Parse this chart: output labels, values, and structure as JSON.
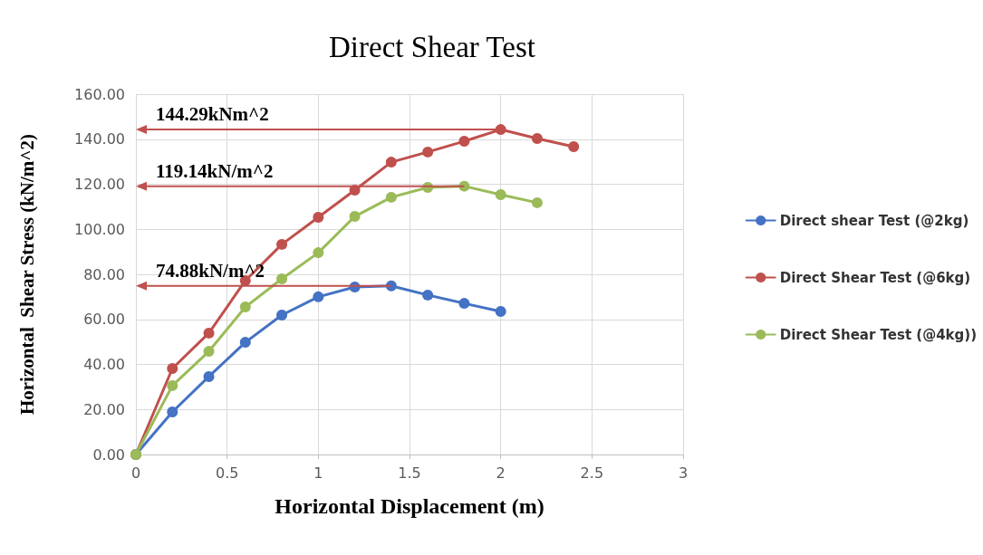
{
  "chart_data": {
    "type": "line",
    "title": "Direct Shear Test",
    "xlabel": "Horizontal Displacement (m)",
    "ylabel": "Horizontal  Shear Stress (kN/m^2)",
    "xlim": [
      0,
      3
    ],
    "xticks": [
      0,
      0.5,
      1,
      1.5,
      2,
      2.5,
      3
    ],
    "ylim": [
      0,
      160
    ],
    "yticks": [
      {
        "value": 0,
        "label": "0.00"
      },
      {
        "value": 20,
        "label": "20.00"
      },
      {
        "value": 40,
        "label": "40.00"
      },
      {
        "value": 60,
        "label": "60.00"
      },
      {
        "value": 80,
        "label": "80.00"
      },
      {
        "value": 100,
        "label": "100.00"
      },
      {
        "value": 120,
        "label": "120.00"
      },
      {
        "value": 140,
        "label": "140.00"
      },
      {
        "value": 160,
        "label": "160.00"
      }
    ],
    "grid": true,
    "legend": "right",
    "marker": "circle",
    "line_style": "solid",
    "series": [
      {
        "name": "Direct shear Test (@2kg)",
        "color": "#4472c4",
        "x": [
          0,
          0.2,
          0.4,
          0.6,
          0.8,
          1.0,
          1.2,
          1.4,
          1.6,
          1.8,
          2.0
        ],
        "values": [
          0,
          18.9,
          34.6,
          49.8,
          61.9,
          70.0,
          74.4,
          74.88,
          70.8,
          67.1,
          63.5
        ]
      },
      {
        "name": "Direct Shear Test (@6kg)",
        "color": "#c0504d",
        "x": [
          0,
          0.2,
          0.4,
          0.6,
          0.8,
          1.0,
          1.2,
          1.4,
          1.6,
          1.8,
          2.0,
          2.2,
          2.4
        ],
        "values": [
          0,
          38.2,
          53.9,
          77.2,
          93.3,
          105.3,
          117.4,
          129.8,
          134.3,
          139.1,
          144.29,
          140.3,
          136.7
        ]
      },
      {
        "name": "Direct Shear Test (@4kg))",
        "color": "#9bbb59",
        "x": [
          0,
          0.2,
          0.4,
          0.6,
          0.8,
          1.0,
          1.2,
          1.4,
          1.6,
          1.8,
          2.0,
          2.2
        ],
        "values": [
          0,
          30.6,
          45.8,
          65.5,
          78.0,
          89.6,
          105.7,
          114.2,
          118.6,
          119.14,
          115.4,
          111.8
        ]
      }
    ],
    "annotations": [
      {
        "text": "144.29kNm^2",
        "x": 2.0,
        "y": 144.29
      },
      {
        "text": "119.14kN/m^2",
        "x": 1.8,
        "y": 119.14
      },
      {
        "text": "74.88kN/m^2",
        "x": 1.4,
        "y": 74.88
      }
    ]
  }
}
